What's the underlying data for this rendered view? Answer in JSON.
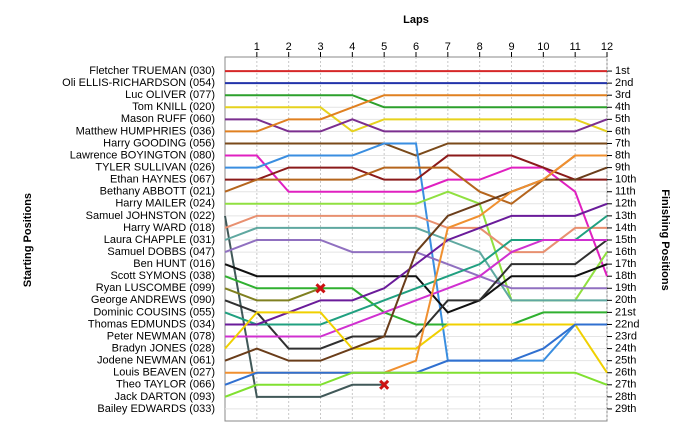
{
  "chart_data": {
    "type": "line",
    "title": "Laps",
    "y_label": "Starting Positions",
    "y2_label": "Finishing Positions",
    "x": [
      0,
      1,
      2,
      3,
      4,
      5,
      6,
      7,
      8,
      9,
      10,
      11,
      12
    ],
    "xlim": [
      0,
      12
    ],
    "xticks": [
      1,
      2,
      3,
      4,
      5,
      6,
      7,
      8,
      9,
      10,
      11,
      12
    ],
    "ylim": [
      0,
      30
    ],
    "yticks": [
      {
        "value": 1,
        "label": "1st"
      },
      {
        "value": 2,
        "label": "2nd"
      },
      {
        "value": 3,
        "label": "3rd"
      },
      {
        "value": 4,
        "label": "4th"
      },
      {
        "value": 5,
        "label": "5th"
      },
      {
        "value": 6,
        "label": "6th"
      },
      {
        "value": 7,
        "label": "7th"
      },
      {
        "value": 8,
        "label": "8th"
      },
      {
        "value": 9,
        "label": "9th"
      },
      {
        "value": 10,
        "label": "10th"
      },
      {
        "value": 11,
        "label": "11th"
      },
      {
        "value": 12,
        "label": "12th"
      },
      {
        "value": 13,
        "label": "13th"
      },
      {
        "value": 14,
        "label": "14th"
      },
      {
        "value": 15,
        "label": "15th"
      },
      {
        "value": 16,
        "label": "16th"
      },
      {
        "value": 17,
        "label": "17th"
      },
      {
        "value": 18,
        "label": "18th"
      },
      {
        "value": 19,
        "label": "19th"
      },
      {
        "value": 20,
        "label": "20th"
      },
      {
        "value": 21,
        "label": "21st"
      },
      {
        "value": 22,
        "label": "22nd"
      },
      {
        "value": 23,
        "label": "23rd"
      },
      {
        "value": 24,
        "label": "24th"
      },
      {
        "value": 25,
        "label": "25th"
      },
      {
        "value": 26,
        "label": "26th"
      },
      {
        "value": 27,
        "label": "27th"
      },
      {
        "value": 28,
        "label": "28th"
      },
      {
        "value": 29,
        "label": "29th"
      }
    ],
    "grid": true,
    "series": [
      {
        "name": "Fletcher TRUEMAN (030)",
        "color": "#d62728",
        "values": [
          1,
          1,
          1,
          1,
          1,
          1,
          1,
          1,
          1,
          1,
          1,
          1,
          1
        ]
      },
      {
        "name": "Oli ELLIS-RICHARDSON (054)",
        "color": "#2233aa",
        "values": [
          2,
          2,
          2,
          2,
          2,
          2,
          2,
          2,
          2,
          2,
          2,
          2,
          2
        ]
      },
      {
        "name": "Luc OLIVER (077)",
        "color": "#2ca02c",
        "values": [
          3,
          3,
          3,
          3,
          3,
          4,
          4,
          4,
          4,
          4,
          4,
          4,
          4
        ]
      },
      {
        "name": "Tom KNILL (020)",
        "color": "#e6d21e",
        "values": [
          4,
          4,
          4,
          4,
          6,
          5,
          5,
          5,
          5,
          5,
          5,
          5,
          6
        ]
      },
      {
        "name": "Mason RUFF (060)",
        "color": "#7b2f8f",
        "values": [
          5,
          5,
          6,
          6,
          5,
          6,
          6,
          6,
          6,
          6,
          6,
          6,
          5
        ]
      },
      {
        "name": "Matthew HUMPHRIES (036)",
        "color": "#e08020",
        "values": [
          6,
          6,
          5,
          5,
          4,
          3,
          3,
          3,
          3,
          3,
          3,
          3,
          3
        ]
      },
      {
        "name": "Harry GOODING (056)",
        "color": "#7a4a1a",
        "values": [
          7,
          7,
          7,
          7,
          7,
          7,
          8,
          7,
          7,
          7,
          7,
          7,
          7
        ]
      },
      {
        "name": "Lawrence BOYINGTON (080)",
        "color": "#e020c0",
        "values": [
          8,
          8,
          11,
          11,
          11,
          11,
          11,
          10,
          10,
          9,
          9,
          11,
          18
        ]
      },
      {
        "name": "TYLER SULLIVAN (026)",
        "color": "#3a8ee0",
        "values": [
          9,
          9,
          8,
          8,
          8,
          7,
          7,
          25,
          25,
          25,
          25,
          22,
          22
        ]
      },
      {
        "name": "Ethan HAYNES (067)",
        "color": "#8b1a1a",
        "values": [
          10,
          10,
          9,
          9,
          9,
          10,
          10,
          8,
          8,
          8,
          9,
          10,
          10
        ]
      },
      {
        "name": "Bethany ABBOTT (021)",
        "color": "#b5651d",
        "values": [
          11,
          10,
          10,
          10,
          10,
          9,
          9,
          9,
          11,
          12,
          10,
          8,
          8
        ]
      },
      {
        "name": "Harry MAILER (024)",
        "color": "#90e040",
        "values": [
          12,
          12,
          12,
          12,
          12,
          12,
          12,
          11,
          12,
          20,
          20,
          20,
          16
        ]
      },
      {
        "name": "Samuel JOHNSTON (022)",
        "color": "#405858",
        "values": [
          13,
          28,
          28,
          28,
          27,
          27,
          null,
          null,
          null,
          null,
          null,
          null,
          null
        ]
      },
      {
        "name": "Harry WARD (018)",
        "color": "#e89070",
        "values": [
          14,
          13,
          13,
          13,
          13,
          13,
          13,
          14,
          14,
          16,
          16,
          14,
          14
        ]
      },
      {
        "name": "Laura CHAPPLE (031)",
        "color": "#5fa8a0",
        "values": [
          15,
          14,
          14,
          14,
          14,
          14,
          14,
          15,
          16,
          20,
          20,
          20,
          20
        ]
      },
      {
        "name": "Samuel DOBBS (047)",
        "color": "#9070c0",
        "values": [
          16,
          15,
          15,
          15,
          16,
          16,
          16,
          17,
          18,
          19,
          19,
          19,
          19
        ]
      },
      {
        "name": "Ben HUNT (016)",
        "color": "#101010",
        "values": [
          17,
          18,
          18,
          18,
          18,
          18,
          18,
          21,
          20,
          18,
          18,
          18,
          17
        ]
      },
      {
        "name": "Scott SYMONS (038)",
        "color": "#30b030",
        "values": [
          18,
          19,
          19,
          19,
          19,
          21,
          22,
          22,
          22,
          22,
          21,
          21,
          21
        ]
      },
      {
        "name": "Ryan LUSCOMBE (099)",
        "color": "#808020",
        "values": [
          19,
          20,
          20,
          19,
          null,
          null,
          null,
          null,
          null,
          null,
          null,
          null,
          null
        ]
      },
      {
        "name": "George ANDREWS (090)",
        "color": "#303030",
        "values": [
          20,
          21,
          24,
          24,
          23,
          23,
          23,
          20,
          20,
          17,
          17,
          17,
          15
        ]
      },
      {
        "name": "Dominic COUSINS (055)",
        "color": "#20a080",
        "values": [
          21,
          22,
          22,
          22,
          21,
          20,
          19,
          18,
          17,
          15,
          15,
          15,
          13
        ]
      },
      {
        "name": "Thomas EDMUNDS (034)",
        "color": "#6a1b9a",
        "values": [
          22,
          22,
          21,
          20,
          20,
          19,
          17,
          15,
          14,
          13,
          13,
          13,
          12
        ]
      },
      {
        "name": "Peter NEWMAN (078)",
        "color": "#d030d0",
        "values": [
          23,
          23,
          23,
          23,
          22,
          21,
          20,
          19,
          18,
          16,
          15,
          15,
          15
        ]
      },
      {
        "name": "Bradyn JONES (028)",
        "color": "#f0d000",
        "values": [
          24,
          21,
          21,
          21,
          24,
          24,
          24,
          22,
          22,
          22,
          22,
          22,
          26
        ]
      },
      {
        "name": "Jodene NEWMAN (061)",
        "color": "#6a3d1a",
        "values": [
          25,
          24,
          25,
          25,
          24,
          23,
          16,
          13,
          12,
          11,
          10,
          10,
          9
        ]
      },
      {
        "name": "Louis BEAVEN (027)",
        "color": "#f09030",
        "values": [
          26,
          26,
          26,
          26,
          26,
          26,
          25,
          14,
          13,
          11,
          10,
          8,
          8
        ]
      },
      {
        "name": "Theo TAYLOR (066)",
        "color": "#3070d0",
        "values": [
          27,
          26,
          26,
          26,
          26,
          26,
          26,
          25,
          25,
          25,
          24,
          22,
          22
        ]
      },
      {
        "name": "Jack DARTON (093)",
        "color": "#80e030",
        "values": [
          28,
          27,
          27,
          27,
          26,
          26,
          26,
          26,
          26,
          26,
          26,
          26,
          27
        ]
      },
      {
        "name": "Bailey EDWARDS (033)",
        "color": "#999999",
        "values": [
          29,
          null,
          null,
          null,
          null,
          null,
          null,
          null,
          null,
          null,
          null,
          null,
          null
        ]
      }
    ]
  }
}
